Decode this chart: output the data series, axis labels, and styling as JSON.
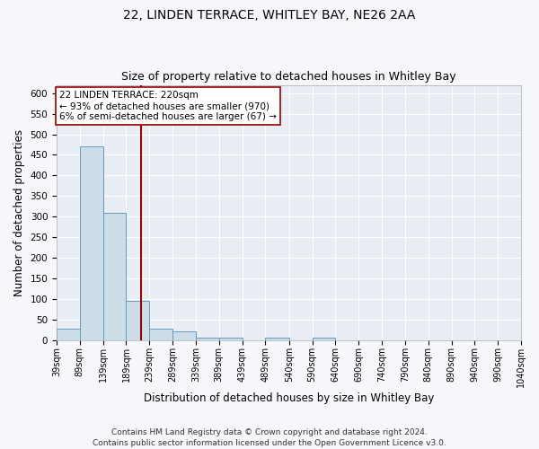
{
  "title1": "22, LINDEN TERRACE, WHITLEY BAY, NE26 2AA",
  "title2": "Size of property relative to detached houses in Whitley Bay",
  "xlabel": "Distribution of detached houses by size in Whitley Bay",
  "ylabel": "Number of detached properties",
  "footnote": "Contains HM Land Registry data © Crown copyright and database right 2024.\nContains public sector information licensed under the Open Government Licence v3.0.",
  "bin_edges": [
    39,
    89,
    139,
    189,
    239,
    289,
    339,
    389,
    439,
    489,
    540,
    590,
    640,
    690,
    740,
    790,
    840,
    890,
    940,
    990,
    1040
  ],
  "bin_labels": [
    "39sqm",
    "89sqm",
    "139sqm",
    "189sqm",
    "239sqm",
    "289sqm",
    "339sqm",
    "389sqm",
    "439sqm",
    "489sqm",
    "540sqm",
    "590sqm",
    "640sqm",
    "690sqm",
    "740sqm",
    "790sqm",
    "840sqm",
    "890sqm",
    "940sqm",
    "990sqm",
    "1040sqm"
  ],
  "counts": [
    27,
    470,
    308,
    95,
    28,
    20,
    5,
    5,
    0,
    5,
    0,
    5,
    0,
    0,
    0,
    0,
    0,
    0,
    0,
    0,
    5
  ],
  "bar_color": "#ccdce8",
  "bar_edge_color": "#6699bb",
  "vline_x": 220,
  "vline_color": "#990000",
  "annotation_text": "22 LINDEN TERRACE: 220sqm\n← 93% of detached houses are smaller (970)\n6% of semi-detached houses are larger (67) →",
  "annotation_box_color": "#ffffff",
  "annotation_box_edge_color": "#990000",
  "ylim": [
    0,
    620
  ],
  "yticks": [
    0,
    50,
    100,
    150,
    200,
    250,
    300,
    350,
    400,
    450,
    500,
    550,
    600
  ],
  "fig_bg_color": "#f5f7fa",
  "plot_bg_color": "#e8eef4",
  "title1_fontsize": 10,
  "title2_fontsize": 9,
  "xlabel_fontsize": 8.5,
  "ylabel_fontsize": 8.5,
  "footnote_fontsize": 6.5,
  "annotation_fontsize": 7.5
}
